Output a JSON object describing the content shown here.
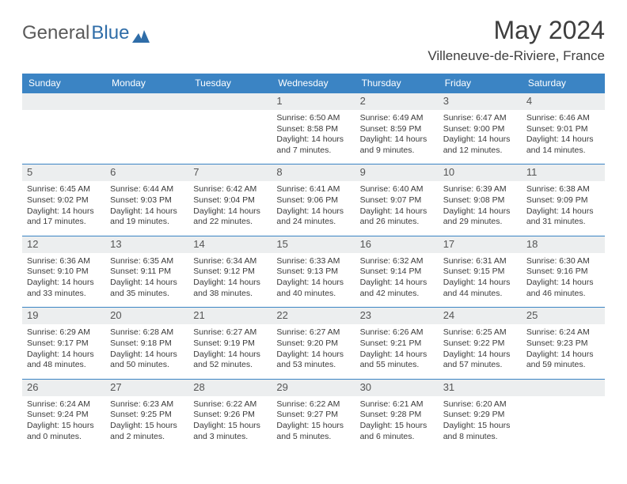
{
  "logo": {
    "general": "General",
    "blue": "Blue"
  },
  "title": "May 2024",
  "location": "Villeneuve-de-Riviere, France",
  "colors": {
    "accent": "#3b84c4",
    "header_text": "#ffffff",
    "daynum_bg": "#eceeef",
    "body_text": "#3a3a3a",
    "title_text": "#3e3e3e",
    "logo_gray": "#5a5a5a",
    "logo_blue": "#2f6da8"
  },
  "day_headers": [
    "Sunday",
    "Monday",
    "Tuesday",
    "Wednesday",
    "Thursday",
    "Friday",
    "Saturday"
  ],
  "weeks": [
    [
      null,
      null,
      null,
      {
        "n": "1",
        "sr": "Sunrise: 6:50 AM",
        "ss": "Sunset: 8:58 PM",
        "d1": "Daylight: 14 hours",
        "d2": "and 7 minutes."
      },
      {
        "n": "2",
        "sr": "Sunrise: 6:49 AM",
        "ss": "Sunset: 8:59 PM",
        "d1": "Daylight: 14 hours",
        "d2": "and 9 minutes."
      },
      {
        "n": "3",
        "sr": "Sunrise: 6:47 AM",
        "ss": "Sunset: 9:00 PM",
        "d1": "Daylight: 14 hours",
        "d2": "and 12 minutes."
      },
      {
        "n": "4",
        "sr": "Sunrise: 6:46 AM",
        "ss": "Sunset: 9:01 PM",
        "d1": "Daylight: 14 hours",
        "d2": "and 14 minutes."
      }
    ],
    [
      {
        "n": "5",
        "sr": "Sunrise: 6:45 AM",
        "ss": "Sunset: 9:02 PM",
        "d1": "Daylight: 14 hours",
        "d2": "and 17 minutes."
      },
      {
        "n": "6",
        "sr": "Sunrise: 6:44 AM",
        "ss": "Sunset: 9:03 PM",
        "d1": "Daylight: 14 hours",
        "d2": "and 19 minutes."
      },
      {
        "n": "7",
        "sr": "Sunrise: 6:42 AM",
        "ss": "Sunset: 9:04 PM",
        "d1": "Daylight: 14 hours",
        "d2": "and 22 minutes."
      },
      {
        "n": "8",
        "sr": "Sunrise: 6:41 AM",
        "ss": "Sunset: 9:06 PM",
        "d1": "Daylight: 14 hours",
        "d2": "and 24 minutes."
      },
      {
        "n": "9",
        "sr": "Sunrise: 6:40 AM",
        "ss": "Sunset: 9:07 PM",
        "d1": "Daylight: 14 hours",
        "d2": "and 26 minutes."
      },
      {
        "n": "10",
        "sr": "Sunrise: 6:39 AM",
        "ss": "Sunset: 9:08 PM",
        "d1": "Daylight: 14 hours",
        "d2": "and 29 minutes."
      },
      {
        "n": "11",
        "sr": "Sunrise: 6:38 AM",
        "ss": "Sunset: 9:09 PM",
        "d1": "Daylight: 14 hours",
        "d2": "and 31 minutes."
      }
    ],
    [
      {
        "n": "12",
        "sr": "Sunrise: 6:36 AM",
        "ss": "Sunset: 9:10 PM",
        "d1": "Daylight: 14 hours",
        "d2": "and 33 minutes."
      },
      {
        "n": "13",
        "sr": "Sunrise: 6:35 AM",
        "ss": "Sunset: 9:11 PM",
        "d1": "Daylight: 14 hours",
        "d2": "and 35 minutes."
      },
      {
        "n": "14",
        "sr": "Sunrise: 6:34 AM",
        "ss": "Sunset: 9:12 PM",
        "d1": "Daylight: 14 hours",
        "d2": "and 38 minutes."
      },
      {
        "n": "15",
        "sr": "Sunrise: 6:33 AM",
        "ss": "Sunset: 9:13 PM",
        "d1": "Daylight: 14 hours",
        "d2": "and 40 minutes."
      },
      {
        "n": "16",
        "sr": "Sunrise: 6:32 AM",
        "ss": "Sunset: 9:14 PM",
        "d1": "Daylight: 14 hours",
        "d2": "and 42 minutes."
      },
      {
        "n": "17",
        "sr": "Sunrise: 6:31 AM",
        "ss": "Sunset: 9:15 PM",
        "d1": "Daylight: 14 hours",
        "d2": "and 44 minutes."
      },
      {
        "n": "18",
        "sr": "Sunrise: 6:30 AM",
        "ss": "Sunset: 9:16 PM",
        "d1": "Daylight: 14 hours",
        "d2": "and 46 minutes."
      }
    ],
    [
      {
        "n": "19",
        "sr": "Sunrise: 6:29 AM",
        "ss": "Sunset: 9:17 PM",
        "d1": "Daylight: 14 hours",
        "d2": "and 48 minutes."
      },
      {
        "n": "20",
        "sr": "Sunrise: 6:28 AM",
        "ss": "Sunset: 9:18 PM",
        "d1": "Daylight: 14 hours",
        "d2": "and 50 minutes."
      },
      {
        "n": "21",
        "sr": "Sunrise: 6:27 AM",
        "ss": "Sunset: 9:19 PM",
        "d1": "Daylight: 14 hours",
        "d2": "and 52 minutes."
      },
      {
        "n": "22",
        "sr": "Sunrise: 6:27 AM",
        "ss": "Sunset: 9:20 PM",
        "d1": "Daylight: 14 hours",
        "d2": "and 53 minutes."
      },
      {
        "n": "23",
        "sr": "Sunrise: 6:26 AM",
        "ss": "Sunset: 9:21 PM",
        "d1": "Daylight: 14 hours",
        "d2": "and 55 minutes."
      },
      {
        "n": "24",
        "sr": "Sunrise: 6:25 AM",
        "ss": "Sunset: 9:22 PM",
        "d1": "Daylight: 14 hours",
        "d2": "and 57 minutes."
      },
      {
        "n": "25",
        "sr": "Sunrise: 6:24 AM",
        "ss": "Sunset: 9:23 PM",
        "d1": "Daylight: 14 hours",
        "d2": "and 59 minutes."
      }
    ],
    [
      {
        "n": "26",
        "sr": "Sunrise: 6:24 AM",
        "ss": "Sunset: 9:24 PM",
        "d1": "Daylight: 15 hours",
        "d2": "and 0 minutes."
      },
      {
        "n": "27",
        "sr": "Sunrise: 6:23 AM",
        "ss": "Sunset: 9:25 PM",
        "d1": "Daylight: 15 hours",
        "d2": "and 2 minutes."
      },
      {
        "n": "28",
        "sr": "Sunrise: 6:22 AM",
        "ss": "Sunset: 9:26 PM",
        "d1": "Daylight: 15 hours",
        "d2": "and 3 minutes."
      },
      {
        "n": "29",
        "sr": "Sunrise: 6:22 AM",
        "ss": "Sunset: 9:27 PM",
        "d1": "Daylight: 15 hours",
        "d2": "and 5 minutes."
      },
      {
        "n": "30",
        "sr": "Sunrise: 6:21 AM",
        "ss": "Sunset: 9:28 PM",
        "d1": "Daylight: 15 hours",
        "d2": "and 6 minutes."
      },
      {
        "n": "31",
        "sr": "Sunrise: 6:20 AM",
        "ss": "Sunset: 9:29 PM",
        "d1": "Daylight: 15 hours",
        "d2": "and 8 minutes."
      },
      null
    ]
  ]
}
